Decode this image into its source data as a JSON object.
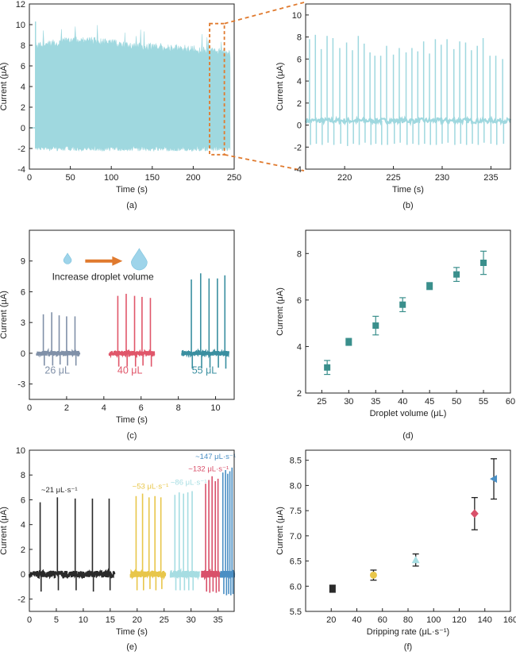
{
  "colors": {
    "cyan": "#9fd8df",
    "orange": "#e07a2e",
    "gray": "#8090a8",
    "red": "#e0566a",
    "teal": "#3a8fa0",
    "dark_teal": "#3a8f8c",
    "black": "#2a2a2a",
    "yellow": "#e8c64a",
    "lightcyan": "#a6dde2",
    "crimson": "#d9506a",
    "blue": "#4a8fc4"
  },
  "chart_data": [
    {
      "id": "a",
      "panel_label": "(a)",
      "type": "line",
      "xlabel": "Time (s)",
      "ylabel": "Current (µA)",
      "xlim": [
        0,
        250
      ],
      "ylim": [
        -4,
        12
      ],
      "xticks": [
        0,
        50,
        100,
        150,
        200,
        250
      ],
      "yticks": [
        -4,
        -2,
        0,
        2,
        4,
        6,
        8,
        10,
        12
      ],
      "signal": {
        "start": 8,
        "end": 245,
        "upper": [
          [
            8,
            8.3
          ],
          [
            60,
            9.0
          ],
          [
            120,
            8.4
          ],
          [
            200,
            8.0
          ],
          [
            245,
            7.6
          ]
        ],
        "lower": -2,
        "spike_max": 10.3
      },
      "highlight_x": [
        220,
        238
      ]
    },
    {
      "id": "b",
      "panel_label": "(b)",
      "type": "line",
      "xlabel": "Time (s)",
      "ylabel": "Current (µA)",
      "xlim": [
        216,
        237
      ],
      "ylim": [
        -4,
        11
      ],
      "xticks": [
        220,
        225,
        230,
        235
      ],
      "yticks": [
        -4,
        -2,
        0,
        2,
        4,
        6,
        8,
        10
      ],
      "baseline": 0.4,
      "peaks_x": [
        216.4,
        217.0,
        217.6,
        218.2,
        218.8,
        219.5,
        220.2,
        220.8,
        221.4,
        222.0,
        222.6,
        223.1,
        223.7,
        224.3,
        225.0,
        225.6,
        226.3,
        226.9,
        227.5,
        228.1,
        228.7,
        229.3,
        229.9,
        230.5,
        231.2,
        231.8,
        232.4,
        233.0,
        233.6,
        234.2,
        234.9,
        235.5,
        236.2
      ],
      "peaks_y": [
        7.8,
        8.2,
        6.9,
        8.1,
        7.9,
        7.0,
        7.5,
        6.8,
        8.1,
        7.4,
        6.6,
        6.3,
        6.3,
        7.2,
        6.4,
        7.0,
        6.6,
        7.0,
        6.7,
        7.6,
        6.5,
        7.8,
        7.3,
        7.8,
        6.9,
        7.6,
        7.5,
        6.8,
        7.2,
        7.9,
        6.3,
        6.3,
        6.0
      ],
      "troughs_y": [
        -1.8,
        -1.7,
        -1.8,
        -1.6,
        -1.8,
        -1.7,
        -1.9,
        -1.7,
        -1.8,
        -1.6,
        -1.8,
        -1.7,
        -1.8,
        -1.8,
        -1.7,
        -1.6,
        -1.8,
        -1.7,
        -1.8,
        -1.7,
        -1.8,
        -1.8,
        -1.7,
        -1.6,
        -1.8,
        -1.7,
        -1.8,
        -1.7,
        -1.8,
        -1.6,
        -1.7,
        -1.8,
        -1.7
      ]
    },
    {
      "id": "c",
      "panel_label": "(c)",
      "type": "line",
      "xlabel": "Time (s)",
      "ylabel": "Current (µA)",
      "xlim": [
        0,
        11
      ],
      "ylim": [
        -4.5,
        12
      ],
      "xticks": [
        0,
        2,
        4,
        6,
        8,
        10
      ],
      "yticks": [
        -3,
        0,
        3,
        6,
        9
      ],
      "annotation": "Increase droplet volume",
      "series": [
        {
          "name": "26 μL",
          "color": "gray",
          "x_range": [
            0.4,
            2.7
          ],
          "peaks_x": [
            0.75,
            1.2,
            1.6,
            2.0,
            2.45
          ],
          "peaks_y": [
            3.8,
            4.0,
            3.7,
            3.6,
            3.6
          ],
          "troughs_y": [
            -1.2,
            -1.2,
            -1.1,
            -1.2,
            -1.2
          ],
          "label_x": 1.5
        },
        {
          "name": "40 μL",
          "color": "red",
          "x_range": [
            4.3,
            6.7
          ],
          "peaks_x": [
            4.75,
            5.2,
            5.65,
            6.05,
            6.5
          ],
          "peaks_y": [
            5.6,
            5.8,
            5.6,
            5.5,
            5.4
          ],
          "troughs_y": [
            -1.3,
            -1.3,
            -1.3,
            -1.2,
            -1.3
          ],
          "label_x": 5.4
        },
        {
          "name": "55 μL",
          "color": "teal",
          "x_range": [
            8.2,
            10.7
          ],
          "peaks_x": [
            8.7,
            9.2,
            9.65,
            10.1,
            10.5
          ],
          "peaks_y": [
            7.2,
            7.8,
            7.3,
            7.3,
            7.6
          ],
          "troughs_y": [
            -1.5,
            -1.5,
            -1.4,
            -1.4,
            -1.5
          ],
          "label_x": 9.4
        }
      ]
    },
    {
      "id": "d",
      "panel_label": "(d)",
      "type": "scatter",
      "xlabel": "Droplet volume (μL)",
      "ylabel": "Current (μA)",
      "xlim": [
        22,
        60
      ],
      "ylim": [
        2,
        9
      ],
      "xticks": [
        25,
        30,
        35,
        40,
        45,
        50,
        55,
        60
      ],
      "yticks": [
        2,
        4,
        6,
        8
      ],
      "x": [
        26,
        30,
        35,
        40,
        45,
        50,
        55
      ],
      "y": [
        3.1,
        4.2,
        4.9,
        5.8,
        6.6,
        7.1,
        7.6
      ],
      "err": [
        0.3,
        0.15,
        0.4,
        0.3,
        0.15,
        0.3,
        0.5
      ]
    },
    {
      "id": "e",
      "panel_label": "(e)",
      "type": "line",
      "xlabel": "Time (s)",
      "ylabel": "Current (μA)",
      "xlim": [
        0,
        38
      ],
      "ylim": [
        -3,
        10
      ],
      "xticks": [
        0,
        5,
        10,
        15,
        20,
        25,
        30,
        35
      ],
      "yticks": [
        -2,
        0,
        2,
        4,
        6,
        8,
        10
      ],
      "series": [
        {
          "name": "~21 μL·s⁻¹",
          "color": "black",
          "x_range": [
            0,
            15.8
          ],
          "peaks_x": [
            2,
            5.2,
            8.5,
            11.7,
            14.8
          ],
          "peaks_y": [
            5.8,
            6.2,
            6.1,
            6.1,
            6.1
          ],
          "troughs_y": [
            -1.4,
            -1.3,
            -1.3,
            -1.4,
            -1.3
          ],
          "label_x": 2.2,
          "label_y": 6.6
        },
        {
          "name": "~53 μL·s⁻¹",
          "color": "yellow",
          "x_range": [
            18.8,
            25.2
          ],
          "peaks_x": [
            19.8,
            21.0,
            22.2,
            23.3,
            24.4
          ],
          "peaks_y": [
            6.3,
            6.5,
            6.2,
            6.3,
            6.2
          ],
          "troughs_y": [
            -1.3,
            -1.3,
            -1.2,
            -1.3,
            -1.2
          ],
          "label_x": 19.1,
          "label_y": 6.9
        },
        {
          "name": "~86 μL·s⁻¹",
          "color": "lightcyan",
          "x_range": [
            26.2,
            31.5
          ],
          "peaks_x": [
            27.0,
            27.8,
            28.6,
            29.4,
            30.2
          ],
          "peaks_y": [
            6.4,
            6.6,
            6.5,
            6.6,
            6.7
          ],
          "troughs_y": [
            -1.3,
            -1.3,
            -1.3,
            -1.3,
            -1.3
          ],
          "label_x": 26.2,
          "label_y": 7.2
        },
        {
          "name": "~132 μL·s⁻¹",
          "color": "crimson",
          "x_range": [
            32.0,
            35.3
          ],
          "peaks_x": [
            32.7,
            33.3,
            33.9,
            34.5,
            35.0
          ],
          "peaks_y": [
            7.3,
            7.6,
            7.9,
            7.5,
            7.7
          ],
          "troughs_y": [
            -1.4,
            -1.5,
            -1.4,
            -1.5,
            -1.4
          ],
          "label_x": 29.5,
          "label_y": 8.3
        },
        {
          "name": "~147 μL·s⁻¹",
          "color": "blue",
          "x_range": [
            35.5,
            38
          ],
          "peaks_x": [
            35.9,
            36.4,
            36.8,
            37.2,
            37.6
          ],
          "peaks_y": [
            8.2,
            8.4,
            8.1,
            8.3,
            8.6
          ],
          "troughs_y": [
            -1.6,
            -1.7,
            -1.6,
            -1.7,
            -1.6
          ],
          "label_x": 30.8,
          "label_y": 9.3
        }
      ]
    },
    {
      "id": "f",
      "panel_label": "(f)",
      "type": "scatter",
      "xlabel": "Dripping rate (μL·s⁻¹)",
      "ylabel": "Current (μA)",
      "xlim": [
        0,
        160
      ],
      "ylim": [
        5.5,
        8.7
      ],
      "xticks": [
        20,
        40,
        60,
        80,
        100,
        120,
        140,
        160
      ],
      "yticks": [
        5.5,
        6.0,
        6.5,
        7.0,
        7.5,
        8.0,
        8.5
      ],
      "points": [
        {
          "x": 21,
          "y": 5.95,
          "err": 0.07,
          "color": "black",
          "marker": "square"
        },
        {
          "x": 53,
          "y": 6.22,
          "err": 0.1,
          "color": "yellow",
          "marker": "circle"
        },
        {
          "x": 86,
          "y": 6.52,
          "err": 0.12,
          "color": "lightcyan",
          "marker": "triangle"
        },
        {
          "x": 132,
          "y": 7.44,
          "err": 0.32,
          "color": "crimson",
          "marker": "diamond"
        },
        {
          "x": 147,
          "y": 8.13,
          "err": 0.4,
          "color": "blue",
          "marker": "tri-left"
        }
      ]
    }
  ]
}
